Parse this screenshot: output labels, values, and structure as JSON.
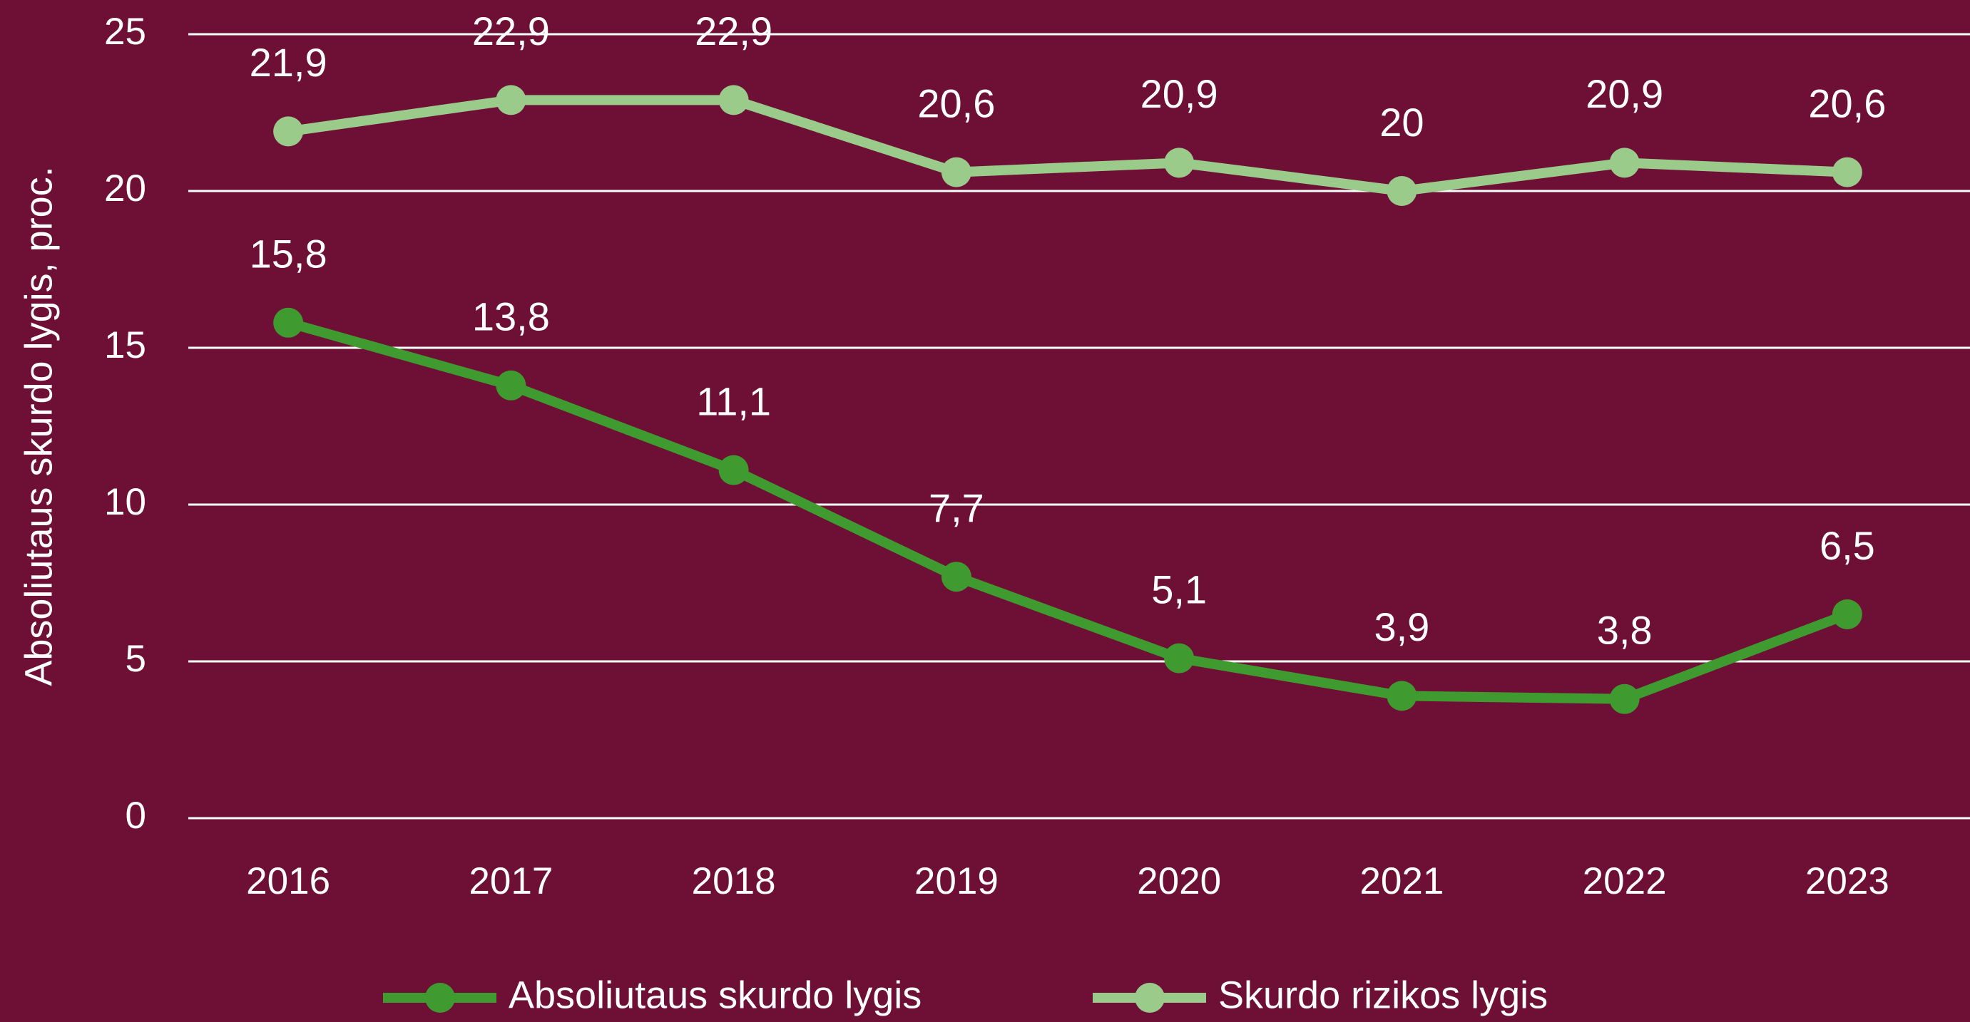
{
  "chart_data": {
    "type": "line",
    "y_axis_label": "Absoliutaus skurdo lygis, proc.",
    "categories": [
      "2016",
      "2017",
      "2018",
      "2019",
      "2020",
      "2021",
      "2022",
      "2023"
    ],
    "series": [
      {
        "name": "Absoliutaus skurdo lygis",
        "color": "#3f9a30",
        "values": [
          15.8,
          13.8,
          11.1,
          7.7,
          5.1,
          3.9,
          3.8,
          6.5
        ],
        "value_labels": [
          "15,8",
          "13,8",
          "11,1",
          "7,7",
          "5,1",
          "3,9",
          "3,8",
          "6,5"
        ]
      },
      {
        "name": "Skurdo rizikos lygis",
        "color": "#9bcb8a",
        "values": [
          21.9,
          22.9,
          22.9,
          20.6,
          20.9,
          20,
          20.9,
          20.6
        ],
        "value_labels": [
          "21,9",
          "22,9",
          "22,9",
          "20,6",
          "20,9",
          "20",
          "20,9",
          "20,6"
        ]
      }
    ],
    "ylim": [
      0,
      25
    ],
    "yticks": [
      0,
      5,
      10,
      15,
      20,
      25
    ],
    "grid": true,
    "legend": "bottom"
  }
}
